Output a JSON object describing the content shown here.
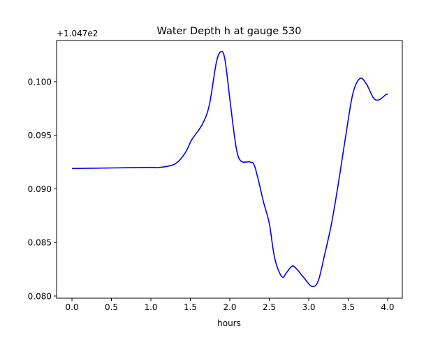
{
  "chart_data": {
    "type": "line",
    "title": "Water Depth h at gauge 530",
    "xlabel": "hours",
    "ylabel": "",
    "offset_label": "+1.047e2",
    "xlim": [
      -0.195,
      4.186
    ],
    "ylim": [
      0.0798,
      0.10384
    ],
    "xticks": [
      0.0,
      0.5,
      1.0,
      1.5,
      2.0,
      2.5,
      3.0,
      3.5,
      4.0
    ],
    "xtick_labels": [
      "0.0",
      "0.5",
      "1.0",
      "1.5",
      "2.0",
      "2.5",
      "3.0",
      "3.5",
      "4.0"
    ],
    "yticks": [
      0.08,
      0.085,
      0.09,
      0.095,
      0.1
    ],
    "ytick_labels": [
      "0.080",
      "0.085",
      "0.090",
      "0.095",
      "0.100"
    ],
    "grid": false,
    "series": [
      {
        "name": "h",
        "color": "#0000ff",
        "x": [
          0.0,
          0.5,
          1.0,
          1.1,
          1.3,
          1.43,
          1.52,
          1.65,
          1.74,
          1.83,
          1.89,
          1.94,
          2.01,
          2.08,
          2.14,
          2.26,
          2.32,
          2.43,
          2.5,
          2.57,
          2.66,
          2.72,
          2.79,
          2.85,
          2.94,
          3.04,
          3.12,
          3.2,
          3.29,
          3.38,
          3.47,
          3.56,
          3.65,
          3.73,
          3.82,
          3.89,
          3.98,
          4.0
        ],
        "y": [
          0.0919,
          0.09195,
          0.092,
          0.09199,
          0.0923,
          0.0933,
          0.0946,
          0.096,
          0.0978,
          0.1018,
          0.1028,
          0.102,
          0.0978,
          0.0939,
          0.0926,
          0.0925,
          0.092,
          0.0887,
          0.0868,
          0.0835,
          0.0818,
          0.0822,
          0.0828,
          0.0825,
          0.0817,
          0.0809,
          0.0814,
          0.0838,
          0.0868,
          0.0907,
          0.095,
          0.0989,
          0.1003,
          0.0998,
          0.0985,
          0.0983,
          0.0988,
          0.0988
        ]
      }
    ]
  }
}
